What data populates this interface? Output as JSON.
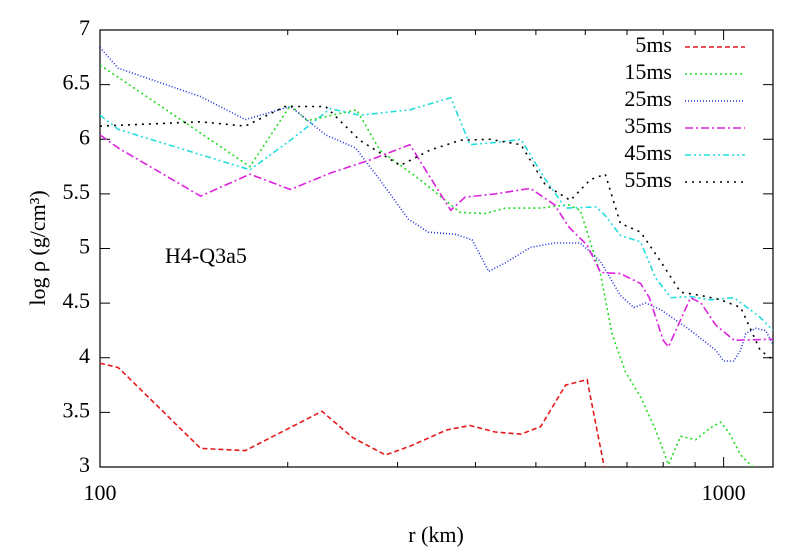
{
  "chart_data": {
    "type": "line",
    "xlabel": "r (km)",
    "ylabel": "log ρ (g/cm³)",
    "annotation": "H4-Q3a5",
    "xscale": "log",
    "xlim": [
      100,
      1200
    ],
    "xticks": [
      100,
      1000
    ],
    "xminor": [
      200,
      300,
      400,
      500,
      600,
      700,
      800,
      900
    ],
    "ylim": [
      3,
      7
    ],
    "yticks": [
      3,
      3.5,
      4,
      4.5,
      5,
      5.5,
      6,
      6.5,
      7
    ],
    "legend": "upper right",
    "series": [
      {
        "name": "5ms",
        "color": "#e41a1c",
        "dash": "5,3",
        "x": [
          100,
          107,
          145,
          171,
          227,
          254,
          287,
          314,
          360,
          392,
          430,
          473,
          509,
          558,
          604,
          646
        ],
        "values": [
          3.95,
          3.91,
          3.17,
          3.15,
          3.51,
          3.27,
          3.11,
          3.19,
          3.34,
          3.38,
          3.32,
          3.3,
          3.37,
          3.75,
          3.8,
          2.95
        ]
      },
      {
        "name": "15ms",
        "color": "#22dd22",
        "dash": "2,3",
        "x": [
          100,
          174,
          202,
          215,
          258,
          281,
          326,
          378,
          415,
          447,
          508,
          564,
          589,
          635,
          663,
          696,
          736,
          778,
          816,
          853,
          902,
          953,
          989,
          1019,
          1065,
          1113
        ],
        "values": [
          6.68,
          5.75,
          6.31,
          6.17,
          6.27,
          5.9,
          5.63,
          5.33,
          5.32,
          5.37,
          5.37,
          5.4,
          5.35,
          4.76,
          4.21,
          3.87,
          3.64,
          3.34,
          3.02,
          3.28,
          3.25,
          3.36,
          3.41,
          3.32,
          3.11,
          3.0
        ]
      },
      {
        "name": "25ms",
        "color": "#2233dd",
        "dash": "1,2",
        "x": [
          100,
          107,
          145,
          171,
          202,
          230,
          257,
          281,
          312,
          336,
          371,
          395,
          420,
          447,
          490,
          536,
          589,
          635,
          683,
          718,
          750,
          793,
          885,
          971,
          1000,
          1038,
          1065,
          1085,
          1125,
          1168,
          1200
        ],
        "values": [
          6.84,
          6.65,
          6.39,
          6.18,
          6.3,
          6.04,
          5.92,
          5.63,
          5.27,
          5.15,
          5.13,
          5.08,
          4.79,
          4.87,
          5.01,
          5.05,
          5.05,
          4.88,
          4.57,
          4.46,
          4.5,
          4.44,
          4.25,
          4.07,
          3.97,
          3.97,
          4.07,
          4.22,
          4.27,
          4.25,
          4.12
        ]
      },
      {
        "name": "35ms",
        "color": "#dd22dd",
        "dash": "8,3,2,3",
        "x": [
          100,
          107,
          145,
          174,
          202,
          234,
          271,
          314,
          365,
          385,
          430,
          490,
          536,
          564,
          604,
          635,
          683,
          736,
          760,
          800,
          816,
          885,
          920,
          971,
          1040,
          1200
        ],
        "values": [
          6.04,
          5.92,
          5.48,
          5.68,
          5.54,
          5.69,
          5.81,
          5.95,
          5.35,
          5.47,
          5.5,
          5.55,
          5.4,
          5.2,
          5.03,
          4.78,
          4.77,
          4.68,
          4.55,
          4.16,
          4.1,
          4.55,
          4.5,
          4.3,
          4.16,
          4.17
        ]
      },
      {
        "name": "45ms",
        "color": "#22dddd",
        "dash": "6,3,2,3,2,3",
        "x": [
          100,
          107,
          174,
          202,
          234,
          261,
          314,
          365,
          392,
          430,
          473,
          518,
          558,
          625,
          646,
          683,
          736,
          778,
          823,
          885,
          953,
          1040,
          1144,
          1200
        ],
        "values": [
          6.22,
          6.09,
          5.72,
          5.99,
          6.28,
          6.22,
          6.27,
          6.38,
          5.95,
          5.97,
          6.0,
          5.63,
          5.37,
          5.38,
          5.3,
          5.12,
          5.06,
          4.73,
          4.55,
          4.56,
          4.53,
          4.55,
          4.37,
          4.25
        ]
      },
      {
        "name": "55ms",
        "color": "#000000",
        "dash": "2,5",
        "x": [
          100,
          145,
          171,
          198,
          230,
          261,
          303,
          338,
          378,
          422,
          473,
          518,
          568,
          611,
          646,
          683,
          736,
          793,
          853,
          920,
          989,
          1065,
          1144,
          1200
        ],
        "values": [
          6.12,
          6.16,
          6.12,
          6.3,
          6.3,
          5.99,
          5.76,
          5.9,
          5.99,
          6.0,
          5.95,
          5.58,
          5.44,
          5.63,
          5.68,
          5.23,
          5.15,
          4.88,
          4.6,
          4.57,
          4.53,
          4.46,
          4.07,
          3.98
        ]
      }
    ]
  }
}
